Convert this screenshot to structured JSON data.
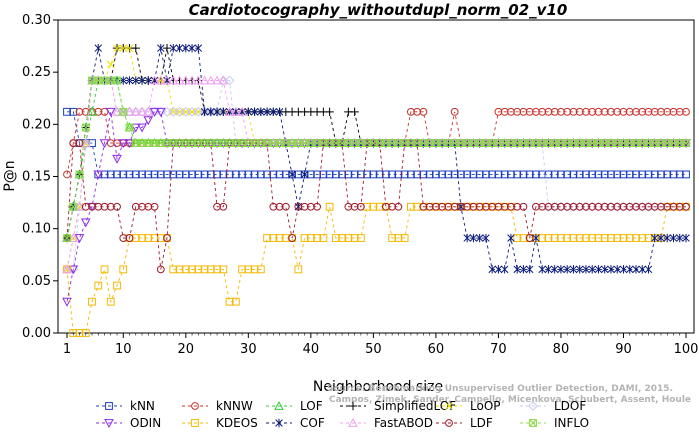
{
  "chart_data": {
    "type": "line",
    "title": "Cardiotocography_withoutdupl_norm_02_v10",
    "xlabel": "Neighborhood size",
    "ylabel": "P@n",
    "xlim": [
      1,
      100
    ],
    "ylim": [
      0.0,
      0.3
    ],
    "xticks": [
      1,
      10,
      20,
      30,
      40,
      50,
      60,
      70,
      80,
      90,
      100
    ],
    "yticks": [
      "0.00",
      "0.05",
      "0.10",
      "0.15",
      "0.20",
      "0.25",
      "0.30"
    ],
    "grid": false,
    "legend_position": "bottom",
    "watermark": [
      "Source: Benchmarking Unsupervised Outlier Detection, DAMI, 2015.",
      "Campos, Zimek, Sander, Campello, Micenkova, Schubert, Assent, Houle"
    ],
    "series": [
      {
        "name": "kNN",
        "color": "#1f3fbf",
        "marker": "square",
        "points": [
          [
            1,
            0.212
          ],
          [
            2,
            0.212
          ],
          [
            3,
            0.182
          ],
          [
            4,
            0.182
          ],
          [
            5,
            0.182
          ],
          [
            6,
            0.152
          ],
          [
            100,
            0.152
          ]
        ]
      },
      {
        "name": "kNNW",
        "color": "#c8322d",
        "marker": "circle",
        "points": [
          [
            1,
            0.152
          ],
          [
            2,
            0.182
          ],
          [
            3,
            0.212
          ],
          [
            5,
            0.212
          ],
          [
            7,
            0.212
          ],
          [
            8,
            0.182
          ],
          [
            55,
            0.182
          ],
          [
            56,
            0.212
          ],
          [
            58,
            0.212
          ],
          [
            59,
            0.182
          ],
          [
            62,
            0.182
          ],
          [
            63,
            0.212
          ],
          [
            64,
            0.182
          ],
          [
            69,
            0.182
          ],
          [
            70,
            0.212
          ],
          [
            100,
            0.212
          ]
        ]
      },
      {
        "name": "LOF",
        "color": "#2ecc2e",
        "marker": "triangle-up",
        "points": [
          [
            1,
            0.091
          ],
          [
            2,
            0.121
          ],
          [
            3,
            0.152
          ],
          [
            4,
            0.182
          ],
          [
            6,
            0.242
          ],
          [
            9,
            0.242
          ],
          [
            10,
            0.212
          ],
          [
            12,
            0.182
          ],
          [
            100,
            0.182
          ]
        ]
      },
      {
        "name": "SimplifiedLOF",
        "color": "#000000",
        "marker": "plus",
        "points": [
          [
            1,
            0.091
          ],
          [
            2,
            0.121
          ],
          [
            3,
            0.152
          ],
          [
            5,
            0.242
          ],
          [
            8,
            0.242
          ],
          [
            9,
            0.273
          ],
          [
            12,
            0.273
          ],
          [
            13,
            0.242
          ],
          [
            16,
            0.242
          ],
          [
            17,
            0.273
          ],
          [
            18,
            0.242
          ],
          [
            22,
            0.242
          ],
          [
            23,
            0.212
          ],
          [
            43,
            0.212
          ],
          [
            44,
            0.182
          ],
          [
            45,
            0.182
          ],
          [
            46,
            0.212
          ],
          [
            47,
            0.212
          ],
          [
            48,
            0.182
          ],
          [
            100,
            0.182
          ]
        ]
      },
      {
        "name": "LoOP",
        "color": "#f0e000",
        "marker": "cross",
        "points": [
          [
            1,
            0.061
          ],
          [
            3,
            0.121
          ],
          [
            5,
            0.242
          ],
          [
            7,
            0.242
          ],
          [
            9,
            0.273
          ],
          [
            11,
            0.273
          ],
          [
            12,
            0.242
          ],
          [
            17,
            0.242
          ],
          [
            18,
            0.212
          ],
          [
            30,
            0.212
          ],
          [
            31,
            0.182
          ],
          [
            100,
            0.182
          ]
        ]
      },
      {
        "name": "LDOF",
        "color": "#c8c8f0",
        "marker": "diamond",
        "points": [
          [
            1,
            0.061
          ],
          [
            2,
            0.061
          ],
          [
            3,
            0.121
          ],
          [
            5,
            0.242
          ],
          [
            8,
            0.242
          ],
          [
            9,
            0.212
          ],
          [
            25,
            0.212
          ],
          [
            26,
            0.242
          ],
          [
            27,
            0.242
          ],
          [
            28,
            0.182
          ],
          [
            77,
            0.182
          ],
          [
            78,
            0.121
          ],
          [
            100,
            0.121
          ]
        ]
      },
      {
        "name": "ODIN",
        "color": "#8b2be2",
        "marker": "triangle-down",
        "points": [
          [
            1,
            0.03
          ],
          [
            2,
            0.061
          ],
          [
            3,
            0.091
          ],
          [
            4,
            0.106
          ],
          [
            5,
            0.121
          ],
          [
            6,
            0.152
          ],
          [
            7,
            0.182
          ],
          [
            8,
            0.212
          ],
          [
            9,
            0.167
          ],
          [
            10,
            0.182
          ],
          [
            11,
            0.182
          ],
          [
            12,
            0.197
          ],
          [
            13,
            0.197
          ],
          [
            14,
            0.204
          ],
          [
            15,
            0.212
          ],
          [
            16,
            0.212
          ],
          [
            17,
            0.182
          ],
          [
            100,
            0.182
          ]
        ]
      },
      {
        "name": "KDEOS",
        "color": "#f5b800",
        "marker": "square",
        "points": [
          [
            1,
            0.061
          ],
          [
            2,
            0.0
          ],
          [
            3,
            0.0
          ],
          [
            4,
            0.0
          ],
          [
            5,
            0.03
          ],
          [
            7,
            0.061
          ],
          [
            8,
            0.03
          ],
          [
            10,
            0.061
          ],
          [
            11,
            0.091
          ],
          [
            17,
            0.091
          ],
          [
            18,
            0.061
          ],
          [
            26,
            0.061
          ],
          [
            27,
            0.03
          ],
          [
            28,
            0.03
          ],
          [
            29,
            0.061
          ],
          [
            32,
            0.061
          ],
          [
            33,
            0.091
          ],
          [
            37,
            0.091
          ],
          [
            38,
            0.061
          ],
          [
            39,
            0.091
          ],
          [
            42,
            0.091
          ],
          [
            43,
            0.121
          ],
          [
            44,
            0.091
          ],
          [
            48,
            0.091
          ],
          [
            49,
            0.121
          ],
          [
            52,
            0.121
          ],
          [
            53,
            0.091
          ],
          [
            55,
            0.091
          ],
          [
            56,
            0.121
          ],
          [
            71,
            0.121
          ],
          [
            72,
            0.121
          ],
          [
            73,
            0.091
          ],
          [
            96,
            0.091
          ],
          [
            97,
            0.121
          ],
          [
            99,
            0.121
          ],
          [
            100,
            0.121
          ]
        ]
      },
      {
        "name": "COF",
        "color": "#0a1a7a",
        "marker": "asterisk",
        "points": [
          [
            1,
            0.091
          ],
          [
            2,
            0.121
          ],
          [
            3,
            0.152
          ],
          [
            5,
            0.242
          ],
          [
            6,
            0.273
          ],
          [
            7,
            0.242
          ],
          [
            15,
            0.242
          ],
          [
            16,
            0.273
          ],
          [
            17,
            0.242
          ],
          [
            18,
            0.273
          ],
          [
            22,
            0.273
          ],
          [
            23,
            0.212
          ],
          [
            35,
            0.212
          ],
          [
            36,
            0.182
          ],
          [
            37,
            0.152
          ],
          [
            38,
            0.121
          ],
          [
            39,
            0.152
          ],
          [
            40,
            0.182
          ],
          [
            63,
            0.182
          ],
          [
            64,
            0.121
          ],
          [
            65,
            0.091
          ],
          [
            68,
            0.091
          ],
          [
            69,
            0.061
          ],
          [
            71,
            0.061
          ],
          [
            72,
            0.091
          ],
          [
            73,
            0.061
          ],
          [
            75,
            0.061
          ],
          [
            76,
            0.091
          ],
          [
            77,
            0.061
          ],
          [
            94,
            0.061
          ],
          [
            95,
            0.091
          ],
          [
            100,
            0.091
          ]
        ]
      },
      {
        "name": "FastABOD",
        "color": "#f0a0f0",
        "marker": "triangle-up",
        "points": [
          [
            1,
            0.061
          ],
          [
            2,
            0.091
          ],
          [
            3,
            0.121
          ],
          [
            5,
            0.242
          ],
          [
            8,
            0.242
          ],
          [
            9,
            0.212
          ],
          [
            14,
            0.212
          ],
          [
            15,
            0.242
          ],
          [
            26,
            0.242
          ],
          [
            27,
            0.212
          ],
          [
            29,
            0.212
          ],
          [
            30,
            0.182
          ],
          [
            100,
            0.182
          ]
        ]
      },
      {
        "name": "LDF",
        "color": "#a01a2a",
        "marker": "circle",
        "points": [
          [
            1,
            0.091
          ],
          [
            2,
            0.182
          ],
          [
            3,
            0.182
          ],
          [
            4,
            0.121
          ],
          [
            5,
            0.121
          ],
          [
            9,
            0.121
          ],
          [
            10,
            0.091
          ],
          [
            11,
            0.091
          ],
          [
            12,
            0.121
          ],
          [
            15,
            0.121
          ],
          [
            16,
            0.061
          ],
          [
            17,
            0.091
          ],
          [
            18,
            0.182
          ],
          [
            24,
            0.182
          ],
          [
            25,
            0.121
          ],
          [
            26,
            0.121
          ],
          [
            27,
            0.182
          ],
          [
            33,
            0.182
          ],
          [
            34,
            0.121
          ],
          [
            36,
            0.121
          ],
          [
            37,
            0.091
          ],
          [
            38,
            0.121
          ],
          [
            41,
            0.121
          ],
          [
            42,
            0.182
          ],
          [
            45,
            0.182
          ],
          [
            46,
            0.121
          ],
          [
            48,
            0.121
          ],
          [
            49,
            0.182
          ],
          [
            51,
            0.182
          ],
          [
            52,
            0.121
          ],
          [
            54,
            0.121
          ],
          [
            55,
            0.182
          ],
          [
            57,
            0.182
          ],
          [
            58,
            0.121
          ],
          [
            74,
            0.121
          ],
          [
            75,
            0.091
          ],
          [
            76,
            0.121
          ],
          [
            100,
            0.121
          ]
        ]
      },
      {
        "name": "INFLO",
        "color": "#88dd44",
        "marker": "cross-square",
        "points": [
          [
            1,
            0.091
          ],
          [
            2,
            0.121
          ],
          [
            3,
            0.152
          ],
          [
            5,
            0.242
          ],
          [
            9,
            0.242
          ],
          [
            10,
            0.212
          ],
          [
            12,
            0.182
          ],
          [
            100,
            0.182
          ]
        ]
      }
    ]
  }
}
